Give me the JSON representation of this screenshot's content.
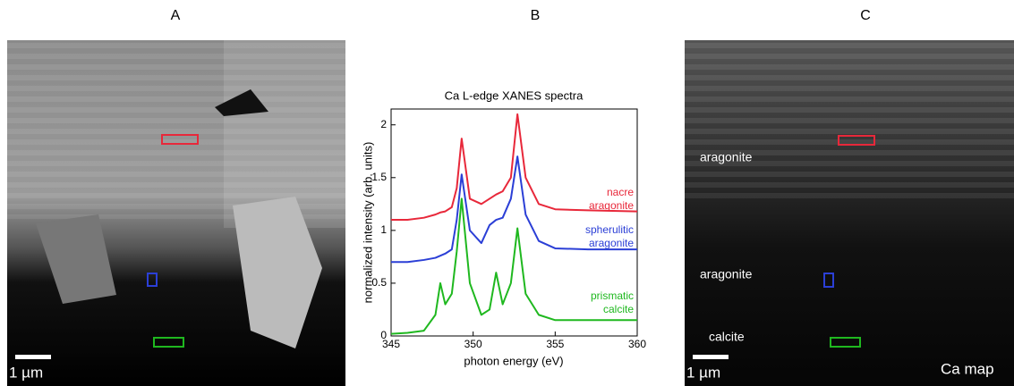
{
  "panels": [
    {
      "label": "A",
      "scale": "1 µm"
    },
    {
      "label": "B"
    },
    {
      "label": "C",
      "scale": "1 µm",
      "map_label": "Ca map",
      "annotations": [
        "aragonite",
        "aragonite",
        "calcite"
      ]
    }
  ],
  "chart_data": {
    "type": "line",
    "title": "Ca L-edge XANES spectra",
    "x_label": "photon energy (eV)",
    "y_label": "normalized intensity (arb. units)",
    "x": [
      345,
      346,
      347,
      347.7,
      348,
      348.3,
      348.7,
      349,
      349.3,
      349.8,
      350.5,
      351,
      351.4,
      351.8,
      352.3,
      352.7,
      353.2,
      354,
      355,
      357,
      360
    ],
    "series": [
      {
        "name": "nacre aragonite",
        "color": "#e8283a",
        "values": [
          1.1,
          1.1,
          1.12,
          1.15,
          1.17,
          1.18,
          1.22,
          1.4,
          1.87,
          1.3,
          1.25,
          1.3,
          1.34,
          1.37,
          1.5,
          2.1,
          1.5,
          1.25,
          1.2,
          1.19,
          1.18
        ]
      },
      {
        "name": "spherulitic aragonite",
        "color": "#2b3fd6",
        "values": [
          0.7,
          0.7,
          0.72,
          0.74,
          0.76,
          0.78,
          0.82,
          1.1,
          1.53,
          1.0,
          0.88,
          1.05,
          1.1,
          1.12,
          1.3,
          1.7,
          1.15,
          0.9,
          0.83,
          0.82,
          0.82
        ]
      },
      {
        "name": "prismatic calcite",
        "color": "#1fb81f",
        "values": [
          0.02,
          0.03,
          0.05,
          0.2,
          0.5,
          0.3,
          0.4,
          0.8,
          1.3,
          0.5,
          0.2,
          0.25,
          0.6,
          0.3,
          0.5,
          1.02,
          0.4,
          0.2,
          0.15,
          0.15,
          0.15
        ]
      }
    ],
    "xlim": [
      345,
      360
    ],
    "xticks": [
      345,
      350,
      355,
      360
    ],
    "ylim": [
      0,
      2.15
    ],
    "yticks": [
      0,
      0.5,
      1,
      1.5,
      2
    ]
  }
}
